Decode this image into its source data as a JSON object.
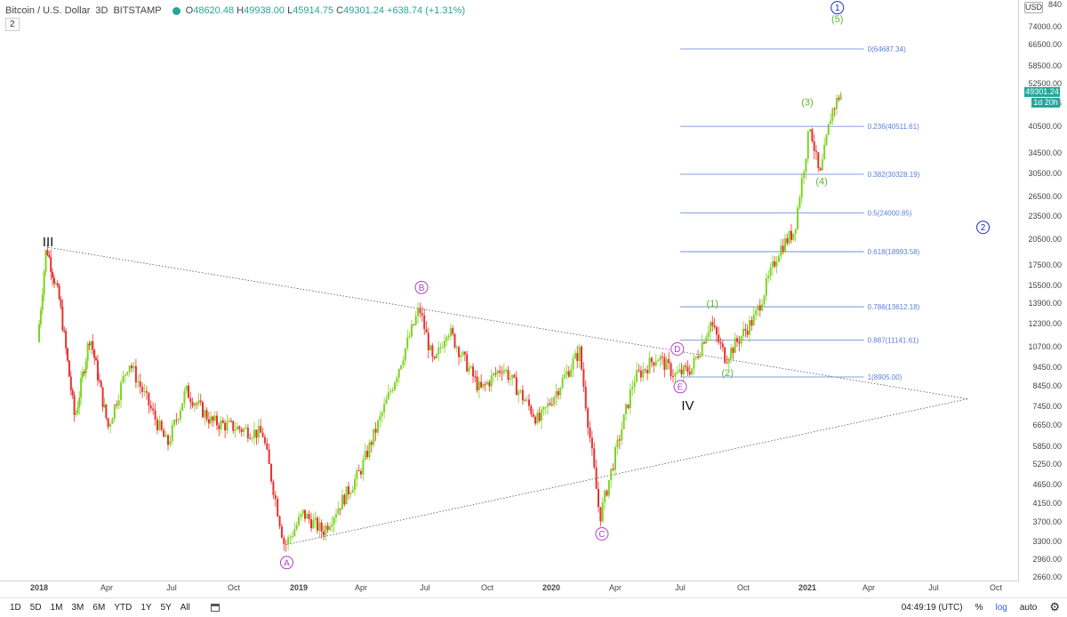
{
  "header": {
    "symbol": "Bitcoin / U.S. Dollar",
    "interval": "3D",
    "exchange": "BITSTAMP",
    "open_label": "O",
    "open": "48620.48",
    "high_label": "H",
    "high": "49938.00",
    "low_label": "L",
    "low": "45914.75",
    "close_label": "C",
    "close": "49301.24",
    "change": "+638.74 (+1.31%)",
    "studies_count": "2",
    "status_color": "#26a69a"
  },
  "price_axis": {
    "currency": "USD",
    "last_price": "49301.24",
    "countdown": "1d 20h",
    "ticks": [
      "74000.00",
      "66500.00",
      "58500.00",
      "52500.00",
      "40500.00",
      "34500.00",
      "30500.00",
      "26500.00",
      "23500.00",
      "20500.00",
      "17500.00",
      "15500.00",
      "13900.00",
      "12300.00",
      "10700.00",
      "9450.00",
      "8450.00",
      "7450.00",
      "6650.00",
      "5850.00",
      "5250.00",
      "4650.00",
      "4150.00",
      "3700.00",
      "3300.00",
      "2960.00"
    ],
    "partial_top": "840",
    "partial_mid": "46",
    "partial_bottom": "2660.00"
  },
  "time_axis": {
    "labels": [
      {
        "text": "2018",
        "year": true
      },
      {
        "text": "Apr",
        "year": false
      },
      {
        "text": "Jul",
        "year": false
      },
      {
        "text": "Oct",
        "year": false
      },
      {
        "text": "2019",
        "year": true
      },
      {
        "text": "Apr",
        "year": false
      },
      {
        "text": "Jul",
        "year": false
      },
      {
        "text": "Oct",
        "year": false
      },
      {
        "text": "2020",
        "year": true
      },
      {
        "text": "Apr",
        "year": false
      },
      {
        "text": "Jul",
        "year": false
      },
      {
        "text": "Oct",
        "year": false
      },
      {
        "text": "2021",
        "year": true
      },
      {
        "text": "Apr",
        "year": false
      },
      {
        "text": "Jul",
        "year": false
      },
      {
        "text": "Oct",
        "year": false
      }
    ]
  },
  "toolbar": {
    "ranges": [
      "1D",
      "5D",
      "1M",
      "3M",
      "6M",
      "YTD",
      "1Y",
      "5Y",
      "All"
    ],
    "clock": "04:49:19 (UTC)",
    "percent": "%",
    "log": "log",
    "auto": "auto"
  },
  "chart_data": {
    "type": "candlestick",
    "scale": "log",
    "ylim": [
      2660,
      84000
    ],
    "up_color": "#7ed321",
    "down_color": "#e8302f",
    "price_series_approx": [
      {
        "date": "2017-12-01",
        "price": 11000
      },
      {
        "date": "2017-12-17",
        "price": 19600
      },
      {
        "date": "2018-01-10",
        "price": 14000
      },
      {
        "date": "2018-02-06",
        "price": 6900
      },
      {
        "date": "2018-03-05",
        "price": 11500
      },
      {
        "date": "2018-04-06",
        "price": 6600
      },
      {
        "date": "2018-05-05",
        "price": 9800
      },
      {
        "date": "2018-06-28",
        "price": 5900
      },
      {
        "date": "2018-07-25",
        "price": 8200
      },
      {
        "date": "2018-09-01",
        "price": 6800
      },
      {
        "date": "2018-11-14",
        "price": 6300
      },
      {
        "date": "2018-12-15",
        "price": 3200
      },
      {
        "date": "2019-01-10",
        "price": 3900
      },
      {
        "date": "2019-02-08",
        "price": 3500
      },
      {
        "date": "2019-04-02",
        "price": 5000
      },
      {
        "date": "2019-05-14",
        "price": 8000
      },
      {
        "date": "2019-06-26",
        "price": 13500
      },
      {
        "date": "2019-07-17",
        "price": 9500
      },
      {
        "date": "2019-08-06",
        "price": 12000
      },
      {
        "date": "2019-09-24",
        "price": 8200
      },
      {
        "date": "2019-10-26",
        "price": 9500
      },
      {
        "date": "2019-12-17",
        "price": 6800
      },
      {
        "date": "2020-02-13",
        "price": 10400
      },
      {
        "date": "2020-03-13",
        "price": 3800
      },
      {
        "date": "2020-04-30",
        "price": 8800
      },
      {
        "date": "2020-06-02",
        "price": 10100
      },
      {
        "date": "2020-06-27",
        "price": 9000
      },
      {
        "date": "2020-07-21",
        "price": 9400
      },
      {
        "date": "2020-08-17",
        "price": 12400
      },
      {
        "date": "2020-09-08",
        "price": 10000
      },
      {
        "date": "2020-10-21",
        "price": 12800
      },
      {
        "date": "2020-11-24",
        "price": 19200
      },
      {
        "date": "2020-12-16",
        "price": 21500
      },
      {
        "date": "2021-01-08",
        "price": 41000
      },
      {
        "date": "2021-01-22",
        "price": 29500
      },
      {
        "date": "2021-02-08",
        "price": 44000
      },
      {
        "date": "2021-02-21",
        "price": 49300
      }
    ],
    "fib_levels": [
      {
        "ratio": "0",
        "price": 64687.34,
        "label": "0(64687.34)"
      },
      {
        "ratio": "0.236",
        "price": 40511.61,
        "label": "0.236(40511.61)"
      },
      {
        "ratio": "0.382",
        "price": 30328.19,
        "label": "0.382(30328.19)"
      },
      {
        "ratio": "0.5",
        "price": 24000.85,
        "label": "0.5(24000.85)"
      },
      {
        "ratio": "0.618",
        "price": 18993.58,
        "label": "0.618(18993.58)"
      },
      {
        "ratio": "0.786",
        "price": 13612.18,
        "label": "0.786(13612.18)"
      },
      {
        "ratio": "0.887",
        "price": 11141.61,
        "label": "0.887(11141.61)"
      },
      {
        "ratio": "1",
        "price": 8905.0,
        "label": "1(8905.00)"
      }
    ],
    "fib_color": "#5b7fd6",
    "wave_labels": [
      {
        "text": "III",
        "date": "2017-12-17",
        "price": 19600,
        "style": "roman",
        "color": "#111111"
      },
      {
        "text": "IV",
        "date": "2020-07-12",
        "price": 7300,
        "style": "roman",
        "color": "#111111"
      },
      {
        "text": "A",
        "date": "2018-12-15",
        "price": 2900,
        "style": "circle",
        "color": "#b040c8"
      },
      {
        "text": "B",
        "date": "2019-06-26",
        "price": 15300,
        "style": "circle",
        "color": "#b040c8"
      },
      {
        "text": "C",
        "date": "2020-03-13",
        "price": 3450,
        "style": "circle",
        "color": "#b040c8"
      },
      {
        "text": "D",
        "date": "2020-06-27",
        "price": 10550,
        "style": "circle",
        "color": "#b040c8"
      },
      {
        "text": "E",
        "date": "2020-07-01",
        "price": 8400,
        "style": "circle",
        "color": "#b040c8"
      },
      {
        "text": "(1)",
        "date": "2020-08-17",
        "price": 13600,
        "style": "paren",
        "color": "#5cb82e"
      },
      {
        "text": "(2)",
        "date": "2020-09-08",
        "price": 8950,
        "style": "paren",
        "color": "#5cb82e"
      },
      {
        "text": "(3)",
        "date": "2021-01-01",
        "price": 46000,
        "style": "paren",
        "color": "#5cb82e"
      },
      {
        "text": "(4)",
        "date": "2021-01-22",
        "price": 28500,
        "style": "paren",
        "color": "#5cb82e"
      },
      {
        "text": "(5)",
        "date": "2021-02-14",
        "price": 76000,
        "style": "paren",
        "color": "#5cb82e"
      },
      {
        "text": "1",
        "date": "2021-02-14",
        "price": 83000,
        "style": "circle",
        "color": "#1a2fc8"
      },
      {
        "text": "2",
        "date": "2021-09-12",
        "price": 22000,
        "style": "circle",
        "color": "#1a2fc8"
      }
    ],
    "triangle_lines": [
      {
        "from": {
          "date": "2017-12-17",
          "price": 19500
        },
        "to": {
          "date": "2021-08-20",
          "price": 7800
        }
      },
      {
        "from": {
          "date": "2018-12-20",
          "price": 3250
        },
        "to": {
          "date": "2021-08-20",
          "price": 7800
        }
      }
    ]
  }
}
